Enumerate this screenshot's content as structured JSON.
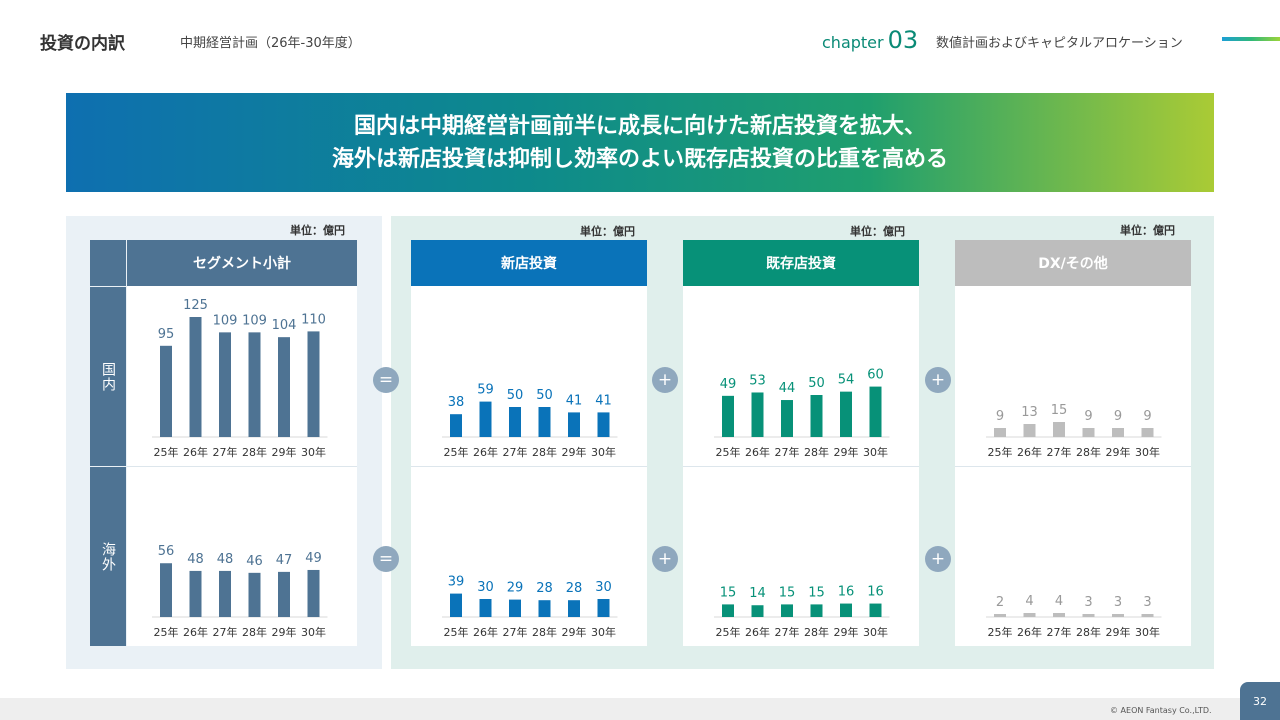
{
  "header": {
    "title": "投資の内訳",
    "subtitle": "中期経営計画（26年-30年度）",
    "chapter_word": "chapter",
    "chapter_num": "03",
    "chapter_title": "数値計画およびキャピタルアロケーション"
  },
  "banner": {
    "line1": "国内は中期経営計画前半に成長に向けた新店投資を拡大、",
    "line2": "海外は新店投資は抑制し効率のよい既存店投資の比重を高める"
  },
  "unit_label": "単位：億円",
  "row_labels": {
    "domestic": "国内",
    "overseas": "海外"
  },
  "operators": {
    "equals": "=",
    "plus": "+"
  },
  "footer": {
    "copyright": "© AEON Fantasy Co.,LTD.",
    "page": "32"
  },
  "colors": {
    "segment": "#4e7393",
    "new_store": "#0a73b9",
    "existing_store": "#079178",
    "dx": "#bdbdbd",
    "dx_label": "#999999"
  },
  "chart_data": [
    {
      "type": "bar",
      "title": "セグメント小計",
      "row": "国内",
      "categories": [
        "25年",
        "26年",
        "27年",
        "28年",
        "29年",
        "30年"
      ],
      "values": [
        95,
        125,
        109,
        109,
        104,
        110
      ]
    },
    {
      "type": "bar",
      "title": "セグメント小計",
      "row": "海外",
      "categories": [
        "25年",
        "26年",
        "27年",
        "28年",
        "29年",
        "30年"
      ],
      "values": [
        56,
        48,
        48,
        46,
        47,
        49
      ]
    },
    {
      "type": "bar",
      "title": "新店投資",
      "row": "国内",
      "categories": [
        "25年",
        "26年",
        "27年",
        "28年",
        "29年",
        "30年"
      ],
      "values": [
        38,
        59,
        50,
        50,
        41,
        41
      ]
    },
    {
      "type": "bar",
      "title": "新店投資",
      "row": "海外",
      "categories": [
        "25年",
        "26年",
        "27年",
        "28年",
        "29年",
        "30年"
      ],
      "values": [
        39,
        30,
        29,
        28,
        28,
        30
      ]
    },
    {
      "type": "bar",
      "title": "既存店投資",
      "row": "国内",
      "categories": [
        "25年",
        "26年",
        "27年",
        "28年",
        "29年",
        "30年"
      ],
      "values": [
        49,
        53,
        44,
        50,
        54,
        60
      ]
    },
    {
      "type": "bar",
      "title": "既存店投資",
      "row": "海外",
      "categories": [
        "25年",
        "26年",
        "27年",
        "28年",
        "29年",
        "30年"
      ],
      "values": [
        15,
        14,
        15,
        15,
        16,
        16
      ]
    },
    {
      "type": "bar",
      "title": "DX/その他",
      "row": "国内",
      "categories": [
        "25年",
        "26年",
        "27年",
        "28年",
        "29年",
        "30年"
      ],
      "values": [
        9,
        13,
        15,
        9,
        9,
        9
      ]
    },
    {
      "type": "bar",
      "title": "DX/その他",
      "row": "海外",
      "categories": [
        "25年",
        "26年",
        "27年",
        "28年",
        "29年",
        "30年"
      ],
      "values": [
        2,
        4,
        4,
        3,
        3,
        3
      ]
    }
  ]
}
